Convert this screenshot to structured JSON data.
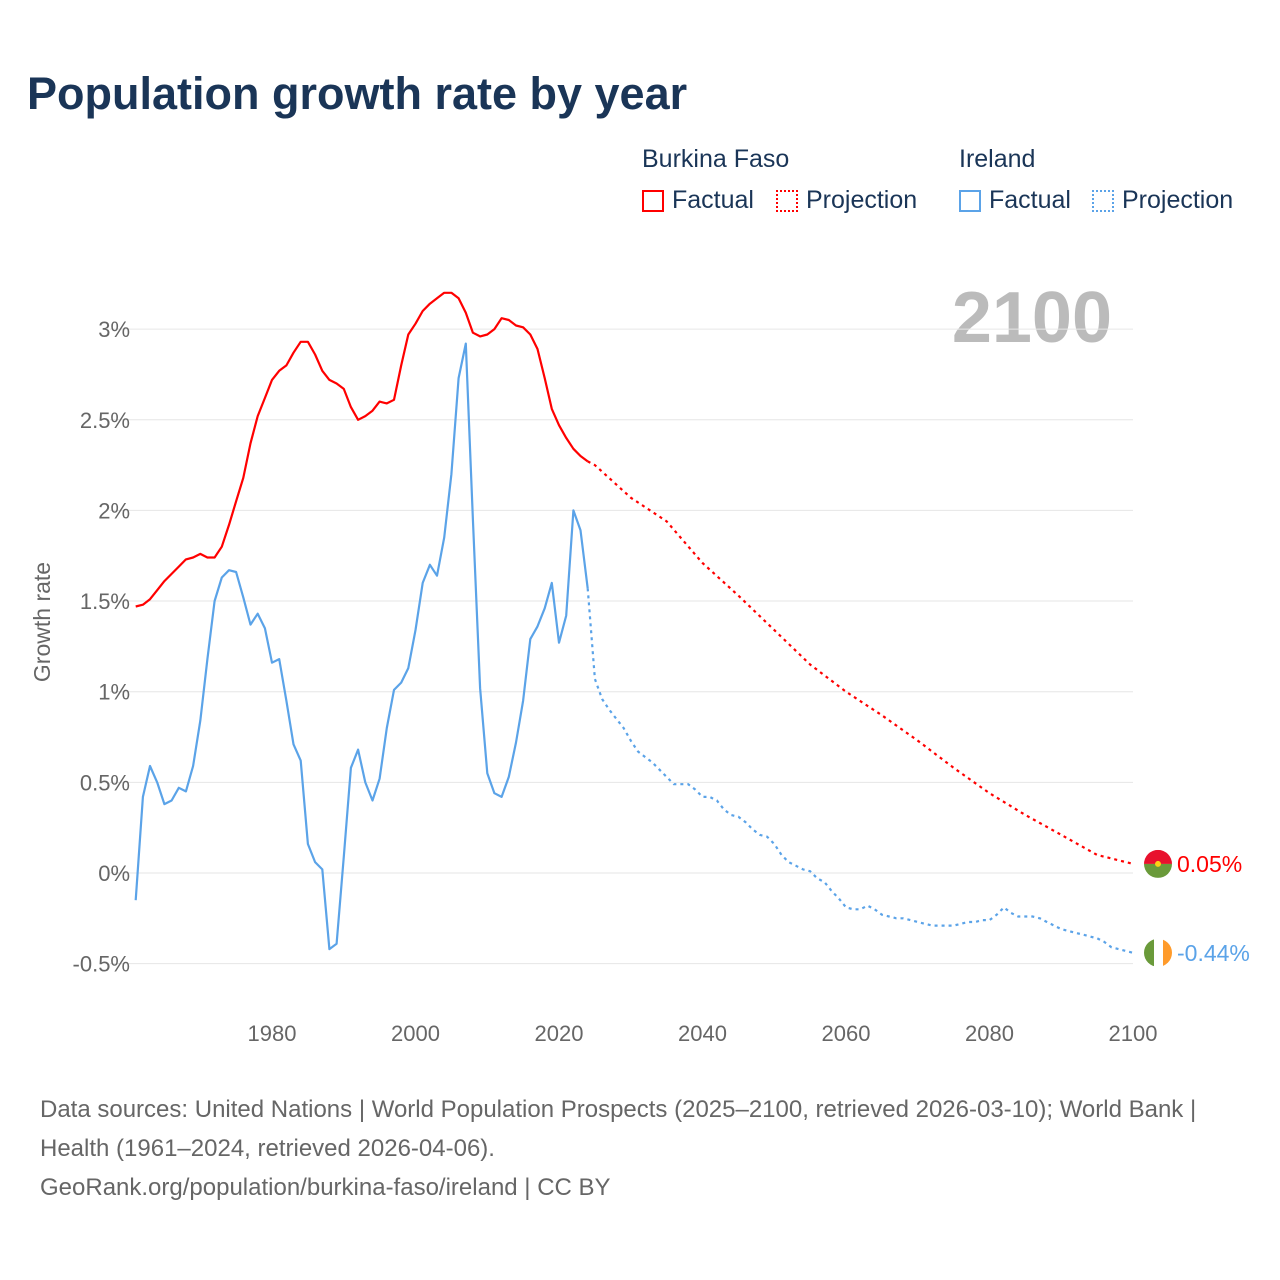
{
  "title": "Population growth rate by year",
  "legend": {
    "groups": [
      {
        "country": "Burkina Faso",
        "factual": "Factual",
        "projection": "Projection",
        "color": "#ff0000"
      },
      {
        "country": "Ireland",
        "factual": "Factual",
        "projection": "Projection",
        "color": "#5ba3e8"
      }
    ]
  },
  "year_display": "2100",
  "footer": {
    "line1": "Data sources: United Nations | World Population Prospects (2025–2100, retrieved 2026-03-10); World Bank | Health (1961–2024, retrieved 2026-04-06).",
    "line2": "GeoRank.org/population/burkina-faso/ireland | CC BY"
  },
  "chart_data": {
    "type": "line",
    "title": "Population growth rate by year",
    "xlabel": "",
    "ylabel": "Growth rate",
    "xlim": [
      1961,
      2100
    ],
    "ylim": [
      -0.6,
      3.35
    ],
    "xticks": [
      1980,
      2000,
      2020,
      2040,
      2060,
      2080,
      2100
    ],
    "yticks": [
      {
        "v": -0.5,
        "label": "-0.5%"
      },
      {
        "v": 0,
        "label": "0%"
      },
      {
        "v": 0.5,
        "label": "0.5%"
      },
      {
        "v": 1,
        "label": "1%"
      },
      {
        "v": 1.5,
        "label": "1.5%"
      },
      {
        "v": 2,
        "label": "2%"
      },
      {
        "v": 2.5,
        "label": "2.5%"
      },
      {
        "v": 3,
        "label": "3%"
      }
    ],
    "grid": true,
    "series": [
      {
        "name": "Burkina Faso",
        "color": "#ff0000",
        "end_label": "0.05%",
        "factual": {
          "x_start": 1961,
          "values": [
            1.47,
            1.48,
            1.51,
            1.56,
            1.61,
            1.65,
            1.69,
            1.73,
            1.74,
            1.76,
            1.74,
            1.74,
            1.8,
            1.92,
            2.05,
            2.18,
            2.37,
            2.52,
            2.62,
            2.72,
            2.77,
            2.8,
            2.87,
            2.93,
            2.93,
            2.86,
            2.77,
            2.72,
            2.7,
            2.67,
            2.57,
            2.5,
            2.52,
            2.55,
            2.6,
            2.59,
            2.61,
            2.8,
            2.97,
            3.03,
            3.1,
            3.14,
            3.17,
            3.2,
            3.2,
            3.17,
            3.09,
            2.98,
            2.96,
            2.97,
            3.0,
            3.06,
            3.05,
            3.02,
            3.01,
            2.97,
            2.89,
            2.73,
            2.56,
            2.47,
            2.4,
            2.34,
            2.3,
            2.27
          ]
        },
        "projection": {
          "x": [
            2024,
            2025,
            2030,
            2035,
            2040,
            2045,
            2050,
            2055,
            2060,
            2065,
            2070,
            2075,
            2080,
            2085,
            2090,
            2095,
            2100
          ],
          "values": [
            2.27,
            2.25,
            2.07,
            1.94,
            1.71,
            1.53,
            1.34,
            1.15,
            1.0,
            0.87,
            0.73,
            0.58,
            0.44,
            0.32,
            0.21,
            0.1,
            0.05
          ]
        }
      },
      {
        "name": "Ireland",
        "color": "#5ba3e8",
        "end_label": "-0.44%",
        "factual": {
          "x_start": 1961,
          "values": [
            -0.15,
            0.42,
            0.59,
            0.5,
            0.38,
            0.4,
            0.47,
            0.45,
            0.59,
            0.84,
            1.18,
            1.5,
            1.63,
            1.67,
            1.66,
            1.52,
            1.37,
            1.43,
            1.35,
            1.16,
            1.18,
            0.95,
            0.71,
            0.62,
            0.16,
            0.06,
            0.02,
            -0.42,
            -0.39,
            0.09,
            0.58,
            0.68,
            0.5,
            0.4,
            0.52,
            0.8,
            1.01,
            1.05,
            1.13,
            1.34,
            1.6,
            1.7,
            1.64,
            1.85,
            2.2,
            2.73,
            2.92,
            1.95,
            1.02,
            0.55,
            0.44,
            0.42,
            0.53,
            0.72,
            0.95,
            1.29,
            1.36,
            1.46,
            1.6,
            1.27,
            1.42,
            2.0,
            1.89,
            1.57
          ]
        },
        "projection": {
          "x_start": 2024,
          "values": [
            1.57,
            1.07,
            0.96,
            0.9,
            0.85,
            0.8,
            0.73,
            0.67,
            0.64,
            0.61,
            0.57,
            0.53,
            0.49,
            0.49,
            0.49,
            0.46,
            0.42,
            0.42,
            0.4,
            0.35,
            0.32,
            0.31,
            0.28,
            0.24,
            0.21,
            0.2,
            0.16,
            0.1,
            0.06,
            0.04,
            0.02,
            0.01,
            -0.03,
            -0.05,
            -0.1,
            -0.14,
            -0.19,
            -0.2,
            -0.2,
            -0.18,
            -0.2,
            -0.23,
            -0.24,
            -0.25,
            -0.25,
            -0.26,
            -0.27,
            -0.28,
            -0.29,
            -0.29,
            -0.29,
            -0.29,
            -0.28,
            -0.27,
            -0.27,
            -0.26,
            -0.26,
            -0.23,
            -0.19,
            -0.22,
            -0.24,
            -0.24,
            -0.24,
            -0.25,
            -0.27,
            -0.29,
            -0.31,
            -0.32,
            -0.33,
            -0.34,
            -0.35,
            -0.36,
            -0.38,
            -0.41,
            -0.42,
            -0.43,
            -0.44
          ]
        }
      }
    ]
  }
}
